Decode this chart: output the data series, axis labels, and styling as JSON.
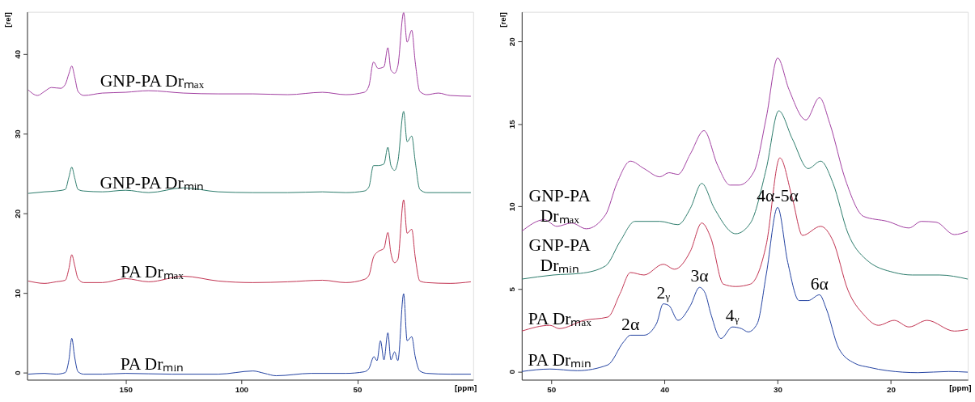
{
  "chart_data": [
    {
      "type": "line",
      "xlabel": "[ppm]",
      "ylabel": "[rel]",
      "xlim": [
        192.5,
        0
      ],
      "ylim": [
        -0.9,
        45.3
      ],
      "xticks": [
        150,
        100,
        50
      ],
      "yticks": [
        0,
        10,
        20,
        30,
        40
      ],
      "grid": false,
      "series": [
        {
          "name": "PA Drₘᵢₙ",
          "color": "#1f3fa0",
          "x": [
            192,
            185,
            180,
            176,
            174.5,
            173.2,
            172,
            170.5,
            168,
            160,
            150,
            130,
            110,
            95,
            90,
            85,
            70,
            55,
            47,
            45,
            42.8,
            41.5,
            40,
            38.5,
            36.8,
            35.5,
            33.9,
            32.5,
            30,
            28.5,
            26.5,
            25,
            23,
            20,
            10,
            1
          ],
          "values": [
            -0.2,
            -0.1,
            -0.2,
            0,
            1.5,
            4.3,
            2.0,
            0.1,
            -0.2,
            -0.2,
            -0.1,
            -0.2,
            -0.2,
            0.2,
            -0.1,
            -0.4,
            -0.1,
            -0.1,
            0.1,
            0.5,
            2.0,
            1.5,
            4.0,
            1.6,
            5.0,
            1.6,
            2.6,
            1.5,
            9.9,
            4.0,
            4.5,
            2.0,
            0.2,
            -0.1,
            -0.2,
            -0.2
          ]
        },
        {
          "name": "PA Drₘₐₓ",
          "color": "#c0304e",
          "x": [
            192,
            185,
            180,
            176,
            174.5,
            173.2,
            172,
            170.5,
            168,
            160,
            150,
            140,
            125,
            110,
            95,
            80,
            65,
            55,
            47,
            45,
            43,
            41,
            38.5,
            36.8,
            35.5,
            33.9,
            32.5,
            30,
            28.5,
            26.5,
            25,
            23,
            20,
            10,
            1
          ],
          "values": [
            11.5,
            11.2,
            11.4,
            11.6,
            13,
            14.8,
            13.5,
            11.8,
            11.3,
            11.3,
            11.8,
            11.4,
            12.1,
            11.5,
            11.3,
            11.4,
            11.6,
            11.3,
            11.7,
            12.2,
            14.5,
            15.2,
            15.6,
            17.6,
            15.0,
            13.8,
            14.2,
            21.7,
            17.5,
            18.0,
            14.5,
            11.5,
            11.3,
            11.2,
            11.4
          ]
        },
        {
          "name": "GNP-PA Drₘᵢₙ",
          "color": "#2a7a6a",
          "x": [
            192,
            185,
            180,
            176,
            174.5,
            173.2,
            172,
            170.5,
            168,
            160,
            150,
            140,
            125,
            110,
            95,
            80,
            65,
            55,
            47,
            45,
            43,
            41,
            38.5,
            36.8,
            35.5,
            33.9,
            32.5,
            30,
            28.5,
            26.5,
            25,
            23,
            20,
            10,
            1
          ],
          "values": [
            22.5,
            22.7,
            22.8,
            23.0,
            24.5,
            25.8,
            24.5,
            23.0,
            22.8,
            22.7,
            22.9,
            22.6,
            23.2,
            22.7,
            22.6,
            22.6,
            22.7,
            22.6,
            22.8,
            23.3,
            26.0,
            26.0,
            26.2,
            28.3,
            26.0,
            25.4,
            26.5,
            32.8,
            29.0,
            29.7,
            26.5,
            23.0,
            22.6,
            22.6,
            22.6
          ]
        },
        {
          "name": "GNP-PA Drₘₐₓ",
          "color": "#a03ca0",
          "x": [
            192,
            188,
            185,
            182,
            178,
            176,
            174.5,
            173.2,
            172,
            170.5,
            168,
            160,
            150,
            140,
            125,
            110,
            95,
            80,
            65,
            55,
            47,
            45,
            43,
            41,
            38.5,
            36.8,
            35.5,
            33.9,
            32.5,
            30,
            28.5,
            26.5,
            25,
            23,
            20,
            15,
            10,
            1
          ],
          "values": [
            35.5,
            34.8,
            35.3,
            35.8,
            35.7,
            36.2,
            37.5,
            38.5,
            37.2,
            35.3,
            34.8,
            35.1,
            35.2,
            35.4,
            35.1,
            35.0,
            35.0,
            34.9,
            35.2,
            34.9,
            35.2,
            36.0,
            39.0,
            38.2,
            38.4,
            40.8,
            38.0,
            37.6,
            38.5,
            45.2,
            41.5,
            43.0,
            39.0,
            35.3,
            34.9,
            35.1,
            34.8,
            34.7
          ]
        }
      ]
    },
    {
      "type": "line",
      "xlabel": "[ppm]",
      "ylabel": "[rel]",
      "xlim": [
        52.6,
        13.2
      ],
      "ylim": [
        -0.5,
        21.8
      ],
      "xticks": [
        50,
        40,
        30,
        20
      ],
      "yticks": [
        0,
        5,
        10,
        15,
        20
      ],
      "grid": false,
      "series": [
        {
          "name": "PA Drₘᵢₙ",
          "color": "#1f3fa0",
          "x": [
            52.6,
            50.1,
            47.7,
            45,
            43.6,
            43,
            41.8,
            40.7,
            40.1,
            39.6,
            38.8,
            37.7,
            36.9,
            36.4,
            35.9,
            35.0,
            34.0,
            33.2,
            32.6,
            31.8,
            31.0,
            30.0,
            29.1,
            28.1,
            27.3,
            26.3,
            25.7,
            24.6,
            23.2,
            21.9,
            20.3,
            17.6,
            14.9,
            13.2
          ],
          "values": [
            0,
            0.15,
            0.05,
            0.4,
            1.8,
            2.2,
            2.2,
            2.9,
            4.1,
            4.0,
            3.1,
            4.0,
            5.1,
            4.75,
            3.5,
            2.0,
            2.7,
            2.6,
            2.4,
            2.9,
            5.9,
            9.95,
            6.6,
            4.3,
            4.3,
            4.65,
            3.8,
            1.4,
            0.5,
            0.25,
            0.05,
            -0.07,
            0,
            -0.04
          ]
        },
        {
          "name": "PA Drₘₐₓ",
          "color": "#c0304e",
          "x": [
            52.6,
            50.1,
            49.3,
            47.1,
            45,
            43.9,
            43,
            41.8,
            40.1,
            39.1,
            37.7,
            36.7,
            35.9,
            34.8,
            33.7,
            32.4,
            31.0,
            29.8,
            28.7,
            27.8,
            26.2,
            25.1,
            23.8,
            22.4,
            21.1,
            19.7,
            18.4,
            16.8,
            14.4,
            13.2
          ],
          "values": [
            2.45,
            2.8,
            2.6,
            3.1,
            3.3,
            4.75,
            6.0,
            5.85,
            6.5,
            6.2,
            7.3,
            9.0,
            8.1,
            5.3,
            5.15,
            5.3,
            7.7,
            12.95,
            10.5,
            8.25,
            8.8,
            7.9,
            4.95,
            3.45,
            2.8,
            3.1,
            2.7,
            3.1,
            2.45,
            2.55
          ]
        },
        {
          "name": "GNP-PA\nDrₘᵢₙ",
          "color": "#2a7a6a",
          "x": [
            52.6,
            49.8,
            47.4,
            45.2,
            43.9,
            42.6,
            40.4,
            38.8,
            37.7,
            36.7,
            35.6,
            33.7,
            32.4,
            31.0,
            29.9,
            28.7,
            27.3,
            26.2,
            25.1,
            23.8,
            22.2,
            19.7,
            18.1,
            15.7,
            13.2
          ],
          "values": [
            5.6,
            5.85,
            5.95,
            6.4,
            7.9,
            9.1,
            9.1,
            8.9,
            9.9,
            11.4,
            9.9,
            8.35,
            9.0,
            12.3,
            15.8,
            14.1,
            12.3,
            12.75,
            11.4,
            8.4,
            6.8,
            6.0,
            5.85,
            5.85,
            5.6
          ]
        },
        {
          "name": "GNP-PA\nDrₘₐₓ",
          "color": "#a03ca0",
          "x": [
            52.6,
            50.6,
            49.5,
            48.2,
            46.9,
            45.2,
            44.2,
            43,
            41.8,
            40.4,
            39.6,
            38.8,
            37.7,
            36.5,
            35.3,
            34.2,
            33.4,
            32.1,
            31.0,
            30.0,
            29.0,
            27.5,
            26.3,
            25.4,
            24.0,
            22.4,
            20.3,
            18.4,
            17.3,
            16.0,
            14.4,
            13.2
          ],
          "values": [
            8.5,
            9.2,
            8.8,
            9.0,
            8.65,
            9.5,
            11.4,
            12.75,
            12.3,
            11.8,
            12.05,
            11.95,
            13.2,
            14.6,
            12.5,
            11.3,
            11.3,
            12.1,
            15.4,
            19.0,
            17.1,
            15.25,
            16.6,
            15.05,
            11.6,
            9.4,
            9.1,
            8.7,
            9.1,
            9.05,
            8.3,
            8.5
          ]
        }
      ],
      "annotations": [
        {
          "text": "2α",
          "x": 43,
          "y": 2.2
        },
        {
          "text": "2ᵧ",
          "x": 40.1,
          "y": 4.1
        },
        {
          "text": "3α",
          "x": 36.9,
          "y": 5.1
        },
        {
          "text": "4ᵧ",
          "x": 34.0,
          "y": 2.7
        },
        {
          "text": "4α-5α",
          "x": 30.0,
          "y": 9.95
        },
        {
          "text": "6α",
          "x": 26.3,
          "y": 4.65
        }
      ]
    }
  ]
}
